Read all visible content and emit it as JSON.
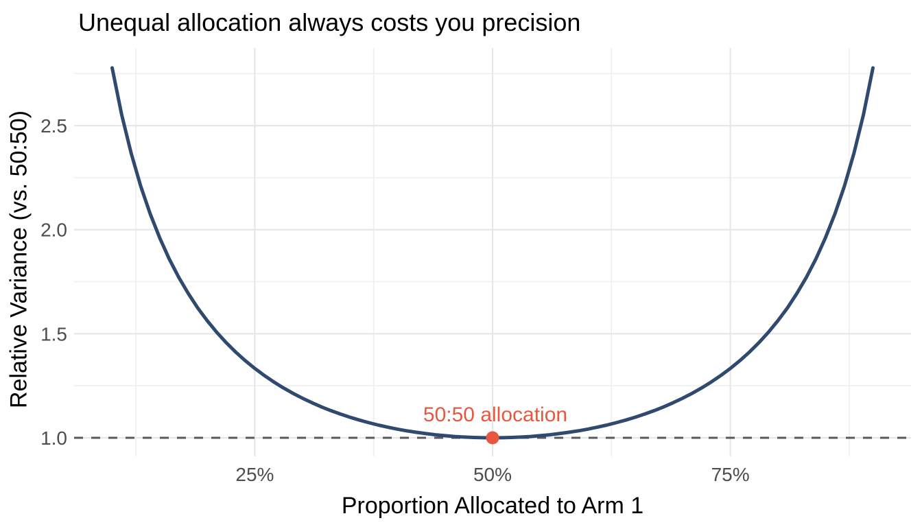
{
  "chart_data": {
    "type": "line",
    "title": "Unequal allocation always costs you precision",
    "xlabel": "Proportion Allocated to Arm 1",
    "ylabel": "Relative Variance (vs. 50:50)",
    "x_unit": "percent",
    "xlim": [
      6,
      94
    ],
    "ylim": [
      0.911,
      2.873
    ],
    "grid": "on",
    "legend": "none",
    "x_axis": {
      "ticks": [
        25,
        50,
        75
      ],
      "tick_labels": [
        "25%",
        "50%",
        "75%"
      ],
      "minor_ticks": [
        12.5,
        37.5,
        62.5,
        87.5
      ]
    },
    "y_axis": {
      "ticks": [
        1.0,
        1.5,
        2.0,
        2.5
      ],
      "tick_labels": [
        "1.0",
        "1.5",
        "2.0",
        "2.5"
      ],
      "minor_ticks": [
        1.25,
        1.75,
        2.25,
        2.75
      ]
    },
    "series": [
      {
        "name": "relative-variance",
        "color": "#2f4a6e",
        "x": [
          10,
          11,
          12,
          13,
          14,
          15,
          16,
          17,
          18,
          19,
          20,
          21,
          22,
          23,
          24,
          25,
          26,
          27,
          28,
          29,
          30,
          31,
          32,
          33,
          34,
          35,
          36,
          37,
          38,
          39,
          40,
          41,
          42,
          43,
          44,
          45,
          46,
          47,
          48,
          49,
          50,
          51,
          52,
          53,
          54,
          55,
          56,
          57,
          58,
          59,
          60,
          61,
          62,
          63,
          64,
          65,
          66,
          67,
          68,
          69,
          70,
          71,
          72,
          73,
          74,
          75,
          76,
          77,
          78,
          79,
          80,
          81,
          82,
          83,
          84,
          85,
          86,
          87,
          88,
          89,
          90
        ],
        "values": [
          2.7778,
          2.5536,
          2.3674,
          2.2104,
          2.0764,
          1.9608,
          1.8601,
          1.7718,
          1.6938,
          1.6244,
          1.5625,
          1.5069,
          1.4569,
          1.4116,
          1.3706,
          1.3333,
          1.2994,
          1.2684,
          1.2401,
          1.2142,
          1.1905,
          1.1688,
          1.1489,
          1.1307,
          1.1141,
          1.0989,
          1.0851,
          1.0725,
          1.0611,
          1.0509,
          1.0417,
          1.0335,
          1.0263,
          1.02,
          1.0146,
          1.0101,
          1.0064,
          1.0036,
          1.0016,
          1.0004,
          1.0,
          1.0004,
          1.0016,
          1.0036,
          1.0064,
          1.0101,
          1.0146,
          1.02,
          1.0263,
          1.0335,
          1.0417,
          1.0509,
          1.0611,
          1.0725,
          1.0851,
          1.0989,
          1.1141,
          1.1307,
          1.1489,
          1.1688,
          1.1905,
          1.2142,
          1.2401,
          1.2684,
          1.2994,
          1.3333,
          1.3706,
          1.4116,
          1.4569,
          1.5069,
          1.5625,
          1.6244,
          1.6938,
          1.7718,
          1.8601,
          1.9608,
          2.0764,
          2.2104,
          2.3674,
          2.5536,
          2.7778
        ]
      }
    ],
    "reference_line": {
      "y": 1.0,
      "style": "dashed",
      "color": "#5a5a5a"
    },
    "point": {
      "x": 50,
      "y": 1.0,
      "color": "#e8573f"
    },
    "annotation": {
      "label": "50:50 allocation",
      "x": 50,
      "y": 1.0,
      "color": "#e8573f"
    },
    "colors": {
      "background": "#ffffff",
      "grid_major": "#e7e7e7",
      "grid_minor": "#efefef",
      "tick_text": "#4d4d4d",
      "text": "#000000"
    }
  }
}
